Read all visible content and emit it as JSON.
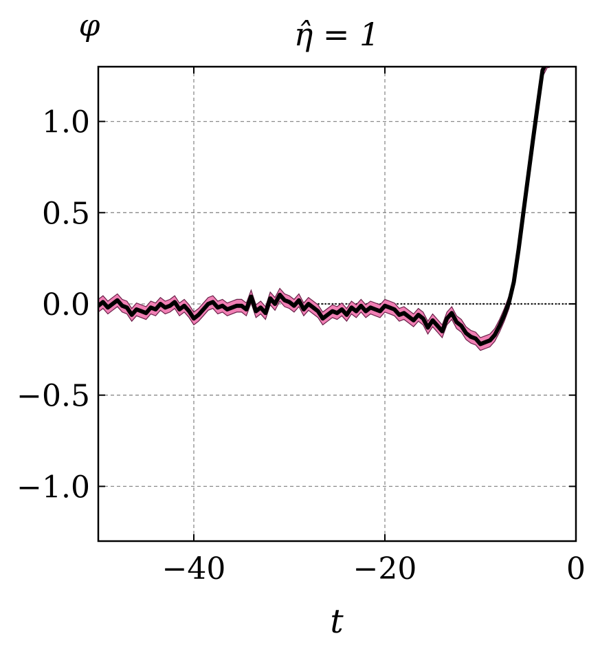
{
  "chart_data": {
    "type": "line",
    "title": "η̂ = 1",
    "xlabel": "t",
    "ylabel": "φ",
    "xlim": [
      -50,
      0
    ],
    "ylim": [
      -1.3,
      1.3
    ],
    "x_ticks": [
      -40,
      -20,
      0
    ],
    "x_tick_labels": [
      "−40",
      "−20",
      "0"
    ],
    "y_ticks": [
      1.0,
      0.5,
      0.0,
      -0.5,
      -1.0
    ],
    "y_tick_labels": [
      "1.0",
      "0.5",
      "0.0",
      "−0.5",
      "−1.0"
    ],
    "grid": true,
    "reference_line": {
      "y": 0.0,
      "style": "dotted",
      "x_from": -27
    },
    "band_halfwidth": 0.035,
    "series": [
      {
        "style": "thick-black-with-pink-band",
        "x": [
          -50,
          -49.5,
          -49,
          -48.5,
          -48,
          -47.5,
          -47,
          -46.5,
          -46,
          -45.5,
          -45,
          -44.5,
          -44,
          -43.5,
          -43,
          -42.5,
          -42,
          -41.5,
          -41,
          -40.5,
          -40,
          -39.5,
          -39,
          -38.5,
          -38,
          -37.5,
          -37,
          -36.5,
          -36,
          -35.5,
          -35,
          -34.5,
          -34,
          -33.5,
          -33,
          -32.5,
          -32,
          -31.5,
          -31,
          -30.5,
          -30,
          -29.5,
          -29,
          -28.5,
          -28,
          -27.5,
          -27,
          -26.5,
          -26,
          -25.5,
          -25,
          -24.5,
          -24,
          -23.5,
          -23,
          -22.5,
          -22,
          -21.5,
          -21,
          -20.5,
          -20,
          -19.5,
          -19,
          -18.5,
          -18,
          -17.5,
          -17,
          -16.5,
          -16,
          -15.5,
          -15,
          -14.5,
          -14,
          -13.5,
          -13,
          -12.5,
          -12,
          -11.5,
          -11,
          -10.5,
          -10,
          -9.5,
          -9,
          -8.5,
          -8,
          -7.5,
          -7,
          -6.5,
          -6,
          -5.5,
          -5,
          -4.5,
          -4,
          -3.5,
          -3,
          -2.8
        ],
        "y": [
          -0.01,
          0.01,
          -0.02,
          0.0,
          0.02,
          -0.01,
          -0.02,
          -0.06,
          -0.03,
          -0.04,
          -0.05,
          -0.02,
          -0.03,
          0.0,
          -0.02,
          -0.01,
          0.01,
          -0.03,
          -0.01,
          -0.04,
          -0.08,
          -0.06,
          -0.03,
          0.0,
          0.01,
          -0.02,
          -0.01,
          -0.03,
          -0.02,
          -0.01,
          -0.01,
          -0.03,
          0.04,
          -0.04,
          -0.02,
          -0.05,
          0.03,
          0.0,
          0.05,
          0.02,
          0.01,
          -0.01,
          0.02,
          -0.03,
          0.0,
          -0.02,
          -0.04,
          -0.08,
          -0.06,
          -0.04,
          -0.05,
          -0.03,
          -0.06,
          -0.02,
          -0.04,
          -0.01,
          -0.04,
          -0.02,
          -0.03,
          -0.04,
          -0.01,
          -0.02,
          -0.03,
          -0.06,
          -0.05,
          -0.07,
          -0.09,
          -0.06,
          -0.08,
          -0.13,
          -0.09,
          -0.12,
          -0.15,
          -0.08,
          -0.05,
          -0.1,
          -0.12,
          -0.16,
          -0.18,
          -0.19,
          -0.22,
          -0.21,
          -0.2,
          -0.17,
          -0.12,
          -0.06,
          0.01,
          0.12,
          0.3,
          0.5,
          0.7,
          0.9,
          1.09,
          1.28,
          1.33,
          1.33
        ]
      }
    ]
  }
}
